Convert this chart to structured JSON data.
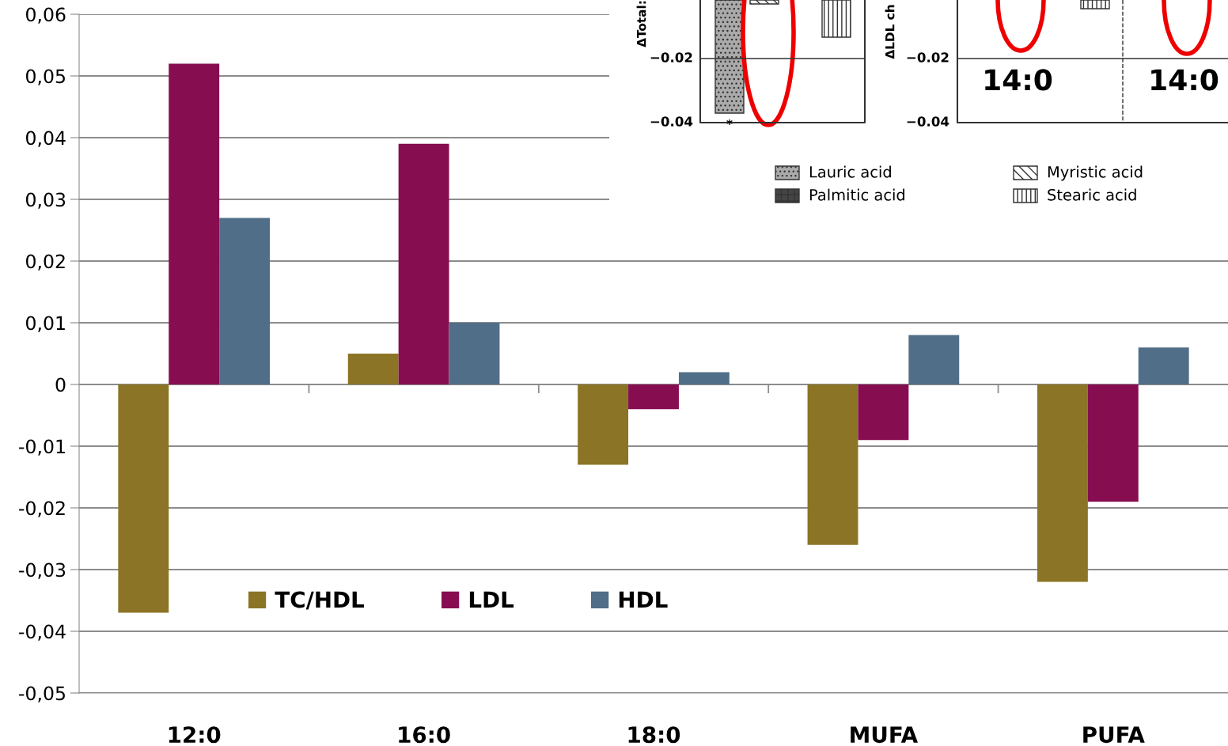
{
  "chart_data": [
    {
      "type": "bar",
      "categories": [
        "12:0",
        "16:0",
        "18:0",
        "MUFA",
        "PUFA"
      ],
      "series": [
        {
          "name": "TC/HDL",
          "color": "#8b7425",
          "values": [
            -0.037,
            0.005,
            -0.013,
            -0.026,
            -0.032
          ]
        },
        {
          "name": "LDL",
          "color": "#860d50",
          "values": [
            0.052,
            0.039,
            -0.004,
            -0.009,
            -0.019
          ]
        },
        {
          "name": "HDL",
          "color": "#516e88",
          "values": [
            0.027,
            0.01,
            0.002,
            0.008,
            0.006
          ]
        }
      ],
      "ylim": [
        -0.05,
        0.06
      ],
      "yticks": [
        {
          "value": -0.05,
          "label": "-0,05"
        },
        {
          "value": -0.04,
          "label": "-0,04"
        },
        {
          "value": -0.03,
          "label": "-0,03"
        },
        {
          "value": -0.02,
          "label": "-0,02"
        },
        {
          "value": -0.01,
          "label": "-0,01"
        },
        {
          "value": 0,
          "label": "0"
        },
        {
          "value": 0.01,
          "label": "0,01"
        },
        {
          "value": 0.02,
          "label": "0,02"
        },
        {
          "value": 0.03,
          "label": "0,03"
        },
        {
          "value": 0.04,
          "label": "0,04"
        },
        {
          "value": 0.05,
          "label": "0,05"
        },
        {
          "value": 0.06,
          "label": "0,06"
        }
      ],
      "grid": "y",
      "legend": "bottom"
    },
    {
      "type": "other",
      "annotations": [
        "ΔTotal:",
        "−0.02",
        "−0.04",
        "*",
        "ΔLDL ch",
        "−0.02",
        "−0.04",
        "14:0",
        "14:0",
        "Lauric acid",
        "Palmitic acid",
        "Myristic acid",
        "Stearic acid"
      ]
    }
  ]
}
